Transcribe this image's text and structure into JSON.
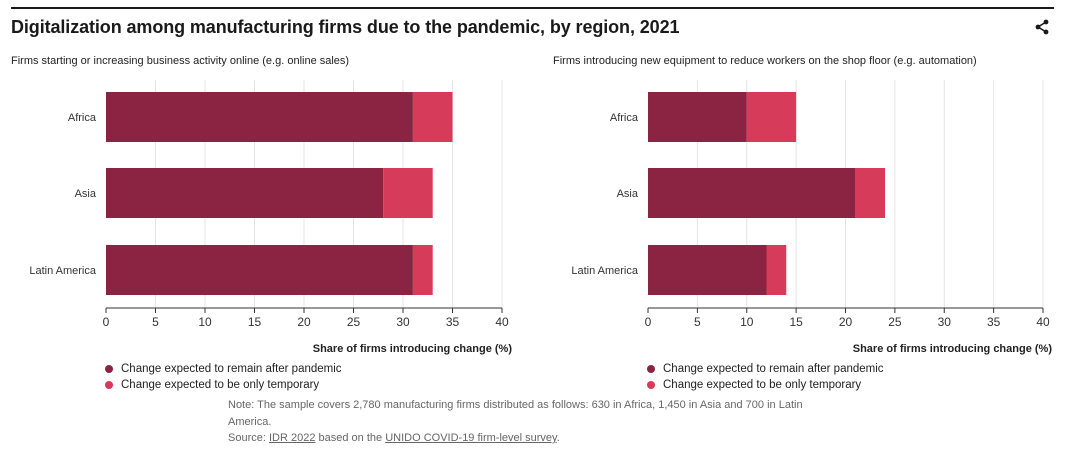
{
  "title": "Digitalization among manufacturing firms due to the pandemic, by region, 2021",
  "colors": {
    "remain": "#8b2343",
    "temporary": "#d73b5a"
  },
  "chart_data": [
    {
      "type": "bar",
      "orientation": "horizontal",
      "stacked": true,
      "title": "Firms starting or increasing business activity online (e.g. online sales)",
      "categories": [
        "Africa",
        "Asia",
        "Latin America"
      ],
      "series": [
        {
          "name": "Change expected to remain after pandemic",
          "values": [
            31,
            28,
            31
          ]
        },
        {
          "name": "Change expected to be only temporary",
          "values": [
            4,
            5,
            2
          ]
        }
      ],
      "xlabel": "Share of firms introducing change (%)",
      "xlim": [
        0,
        40
      ],
      "xticks": [
        0,
        5,
        10,
        15,
        20,
        25,
        30,
        35,
        40
      ],
      "grid": true
    },
    {
      "type": "bar",
      "orientation": "horizontal",
      "stacked": true,
      "title": "Firms introducing new equipment to reduce workers on the shop floor (e.g. automation)",
      "categories": [
        "Africa",
        "Asia",
        "Latin America"
      ],
      "series": [
        {
          "name": "Change expected to remain after pandemic",
          "values": [
            10,
            21,
            12
          ]
        },
        {
          "name": "Change expected to be only temporary",
          "values": [
            5,
            3,
            2
          ]
        }
      ],
      "xlabel": "Share of firms introducing change (%)",
      "xlim": [
        0,
        40
      ],
      "xticks": [
        0,
        5,
        10,
        15,
        20,
        25,
        30,
        35,
        40
      ],
      "grid": true
    }
  ],
  "footnote": {
    "note": "Note: The sample covers 2,780 manufacturing firms distributed as follows: 630 in Africa, 1,450 in Asia and 700 in Latin America.",
    "source_prefix": "Source: ",
    "source_link1": "IDR 2022",
    "source_middle": " based on the ",
    "source_link2": "UNIDO COVID-19 firm-level survey",
    "source_suffix": "."
  }
}
